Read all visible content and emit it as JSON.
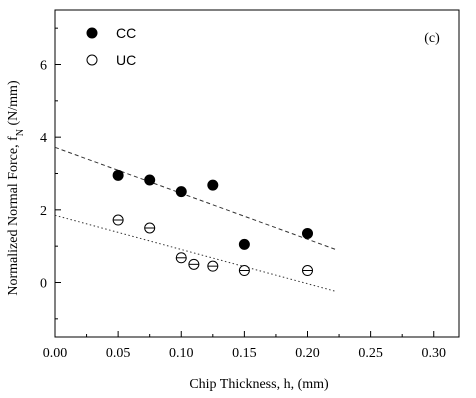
{
  "chart_data": {
    "type": "scatter",
    "panel_label": "(c)",
    "xlabel": "Chip Thickness, h, (mm)",
    "ylabel_main": "Normalized Normal Force, f",
    "ylabel_sub": "N",
    "ylabel_unit": " (N/mm)",
    "xlim": [
      0.0,
      0.32
    ],
    "ylim": [
      -1.5,
      7.5
    ],
    "xticks": [
      "0.00",
      "0.05",
      "0.10",
      "0.15",
      "0.20",
      "0.25",
      "0.30"
    ],
    "xtick_values": [
      0.0,
      0.05,
      0.1,
      0.15,
      0.2,
      0.25,
      0.3
    ],
    "yticks": [
      "0",
      "2",
      "4",
      "6"
    ],
    "ytick_values": [
      0,
      2,
      4,
      6
    ],
    "grid": false,
    "legend_position": "top-left",
    "series": [
      {
        "name": "CC",
        "marker": "filled-circle",
        "x": [
          0.05,
          0.075,
          0.1,
          0.125,
          0.15,
          0.2
        ],
        "y": [
          2.95,
          2.82,
          2.5,
          2.68,
          1.05,
          1.35
        ],
        "fit": {
          "style": "dashed",
          "x": [
            0.0,
            0.223
          ],
          "y": [
            3.72,
            0.9
          ]
        }
      },
      {
        "name": "UC",
        "marker": "open-circle-with-errorbar",
        "x": [
          0.05,
          0.075,
          0.1,
          0.11,
          0.125,
          0.15,
          0.2
        ],
        "y": [
          1.72,
          1.5,
          0.68,
          0.5,
          0.45,
          0.33,
          0.33
        ],
        "fit": {
          "style": "dotted",
          "x": [
            0.0,
            0.223
          ],
          "y": [
            1.85,
            -0.25
          ]
        }
      }
    ]
  }
}
